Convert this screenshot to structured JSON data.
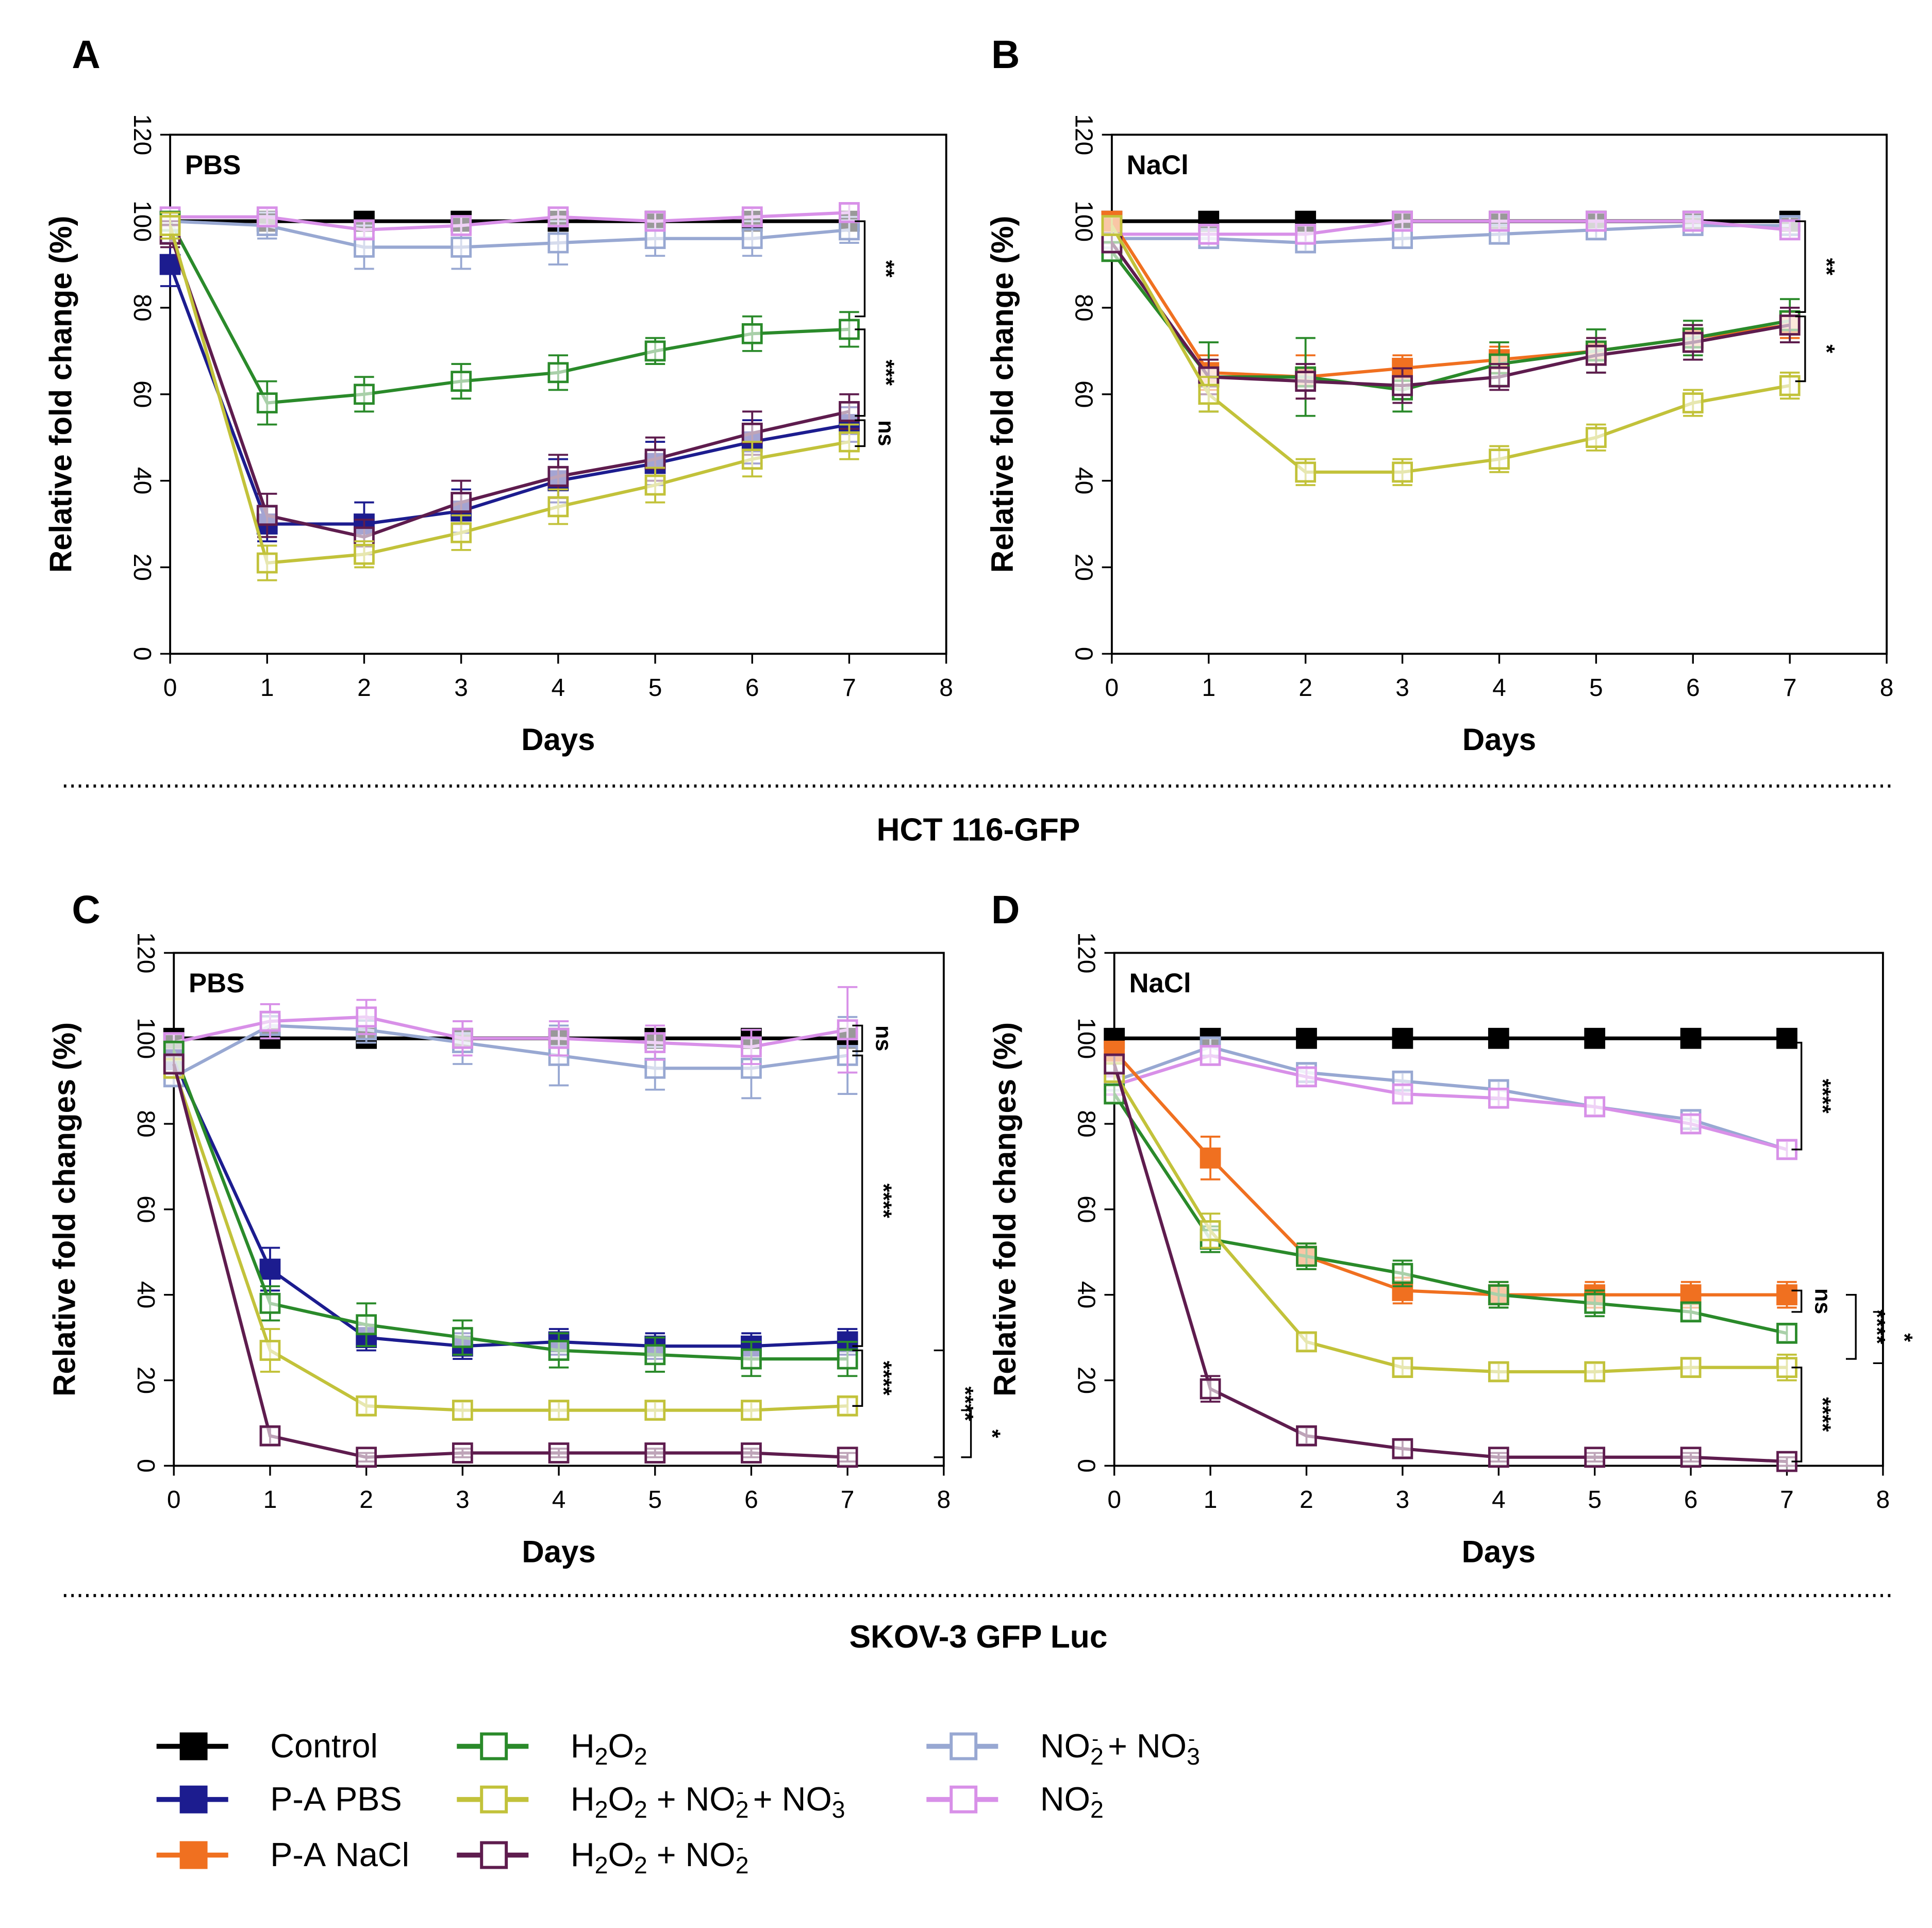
{
  "figure": {
    "cell_lines": [
      "HCT 116-GFP",
      "SKOV-3 GFP Luc"
    ]
  },
  "colors": {
    "Control": "#000000",
    "P-A PBS": "#1c1c8f",
    "P-A NaCl": "#f07020",
    "H2O2": "#2a8a2a",
    "H2O2 + NO2- + NO3-": "#c2c23a",
    "H2O2 + NO2-": "#5e1c4e",
    "NO2- + NO3-": "#98a8d2",
    "NO2-": "#d890e8"
  },
  "legend": {
    "items": [
      {
        "key": "Control",
        "label": "Control",
        "filled": true
      },
      {
        "key": "P-A PBS",
        "label": "P-A PBS",
        "filled": true
      },
      {
        "key": "P-A NaCl",
        "label": "P-A NaCl",
        "filled": true
      },
      {
        "key": "H2O2",
        "label": "H2O2",
        "filled": false
      },
      {
        "key": "H2O2 + NO2- + NO3-",
        "label": "H2O2 + NO2- + NO3-",
        "filled": false
      },
      {
        "key": "H2O2 + NO2-",
        "label": "H2O2 + NO2-",
        "filled": false
      },
      {
        "key": "NO2- + NO3-",
        "label": "NO2- + NO3-",
        "filled": false
      },
      {
        "key": "NO2-",
        "label": "NO2-",
        "filled": false
      }
    ]
  },
  "chart_data": [
    {
      "panel": "A",
      "type": "line",
      "cell_line": "HCT 116-GFP",
      "title": "PBS",
      "xlabel": "Days",
      "ylabel": "Relative fold change (%)",
      "xlim": [
        0,
        8
      ],
      "ylim": [
        0,
        120
      ],
      "xticks": [
        0,
        1,
        2,
        3,
        4,
        5,
        6,
        7,
        8
      ],
      "yticks": [
        0,
        20,
        40,
        60,
        80,
        100,
        120
      ],
      "x": [
        0,
        1,
        2,
        3,
        4,
        5,
        6,
        7
      ],
      "series": [
        {
          "name": "Control",
          "filled": true,
          "values": [
            100,
            100,
            100,
            100,
            100,
            100,
            100,
            100
          ],
          "err": [
            1,
            1,
            1,
            1,
            1,
            1,
            1,
            1
          ]
        },
        {
          "name": "NO2- + NO3-",
          "filled": false,
          "values": [
            100,
            99,
            94,
            94,
            95,
            96,
            96,
            98
          ],
          "err": [
            2,
            3,
            5,
            5,
            5,
            4,
            4,
            3
          ]
        },
        {
          "name": "NO2-",
          "filled": false,
          "values": [
            101,
            101,
            98,
            99,
            101,
            100,
            101,
            102
          ],
          "err": [
            2,
            2,
            2,
            2,
            2,
            2,
            2,
            2
          ]
        },
        {
          "name": "H2O2",
          "filled": false,
          "values": [
            100,
            58,
            60,
            63,
            65,
            70,
            74,
            75
          ],
          "err": [
            2,
            5,
            4,
            4,
            4,
            3,
            4,
            4
          ]
        },
        {
          "name": "P-A PBS",
          "filled": true,
          "values": [
            90,
            30,
            30,
            33,
            40,
            44,
            49,
            53
          ],
          "err": [
            5,
            4,
            5,
            5,
            5,
            5,
            5,
            4
          ]
        },
        {
          "name": "H2O2 + NO2-",
          "filled": false,
          "values": [
            97,
            32,
            27,
            35,
            41,
            45,
            51,
            56
          ],
          "err": [
            3,
            5,
            4,
            5,
            5,
            5,
            5,
            4
          ]
        },
        {
          "name": "H2O2 + NO2- + NO3-",
          "filled": false,
          "values": [
            99,
            21,
            23,
            28,
            34,
            39,
            45,
            49
          ],
          "err": [
            3,
            4,
            3,
            4,
            4,
            4,
            4,
            4
          ]
        }
      ],
      "annotations": [
        {
          "label": "**",
          "y_top": 100,
          "y_bottom": 78
        },
        {
          "label": "***",
          "y_top": 75,
          "y_bottom": 55
        },
        {
          "label": "ns",
          "y_top": 54,
          "y_bottom": 48
        }
      ]
    },
    {
      "panel": "B",
      "type": "line",
      "cell_line": "HCT 116-GFP",
      "title": "NaCl",
      "xlabel": "Days",
      "ylabel": "Relative fold change (%)",
      "xlim": [
        0,
        8
      ],
      "ylim": [
        0,
        120
      ],
      "xticks": [
        0,
        1,
        2,
        3,
        4,
        5,
        6,
        7,
        8
      ],
      "yticks": [
        0,
        20,
        40,
        60,
        80,
        100,
        120
      ],
      "x": [
        0,
        1,
        2,
        3,
        4,
        5,
        6,
        7
      ],
      "series": [
        {
          "name": "Control",
          "filled": true,
          "values": [
            100,
            100,
            100,
            100,
            100,
            100,
            100,
            100
          ],
          "err": [
            1,
            1,
            1,
            1,
            1,
            1,
            1,
            1
          ]
        },
        {
          "name": "NO2- + NO3-",
          "filled": false,
          "values": [
            96,
            96,
            95,
            96,
            97,
            98,
            99,
            99
          ],
          "err": [
            2,
            2,
            2,
            2,
            2,
            2,
            2,
            2
          ]
        },
        {
          "name": "NO2-",
          "filled": false,
          "values": [
            97,
            97,
            97,
            100,
            100,
            100,
            100,
            98
          ],
          "err": [
            2,
            2,
            2,
            2,
            2,
            2,
            2,
            2
          ]
        },
        {
          "name": "P-A NaCl",
          "filled": true,
          "values": [
            100,
            65,
            64,
            66,
            68,
            70,
            73,
            76
          ],
          "err": [
            2,
            4,
            5,
            3,
            3,
            3,
            3,
            3
          ]
        },
        {
          "name": "H2O2",
          "filled": false,
          "values": [
            93,
            64,
            64,
            61,
            67,
            70,
            73,
            77
          ],
          "err": [
            2,
            8,
            9,
            5,
            5,
            5,
            4,
            5
          ]
        },
        {
          "name": "H2O2 + NO2-",
          "filled": false,
          "values": [
            95,
            64,
            63,
            62,
            64,
            69,
            72,
            76
          ],
          "err": [
            2,
            4,
            4,
            4,
            3,
            4,
            4,
            4
          ]
        },
        {
          "name": "H2O2 + NO2- + NO3-",
          "filled": false,
          "values": [
            99,
            60,
            42,
            42,
            45,
            50,
            58,
            62
          ],
          "err": [
            2,
            4,
            3,
            3,
            3,
            3,
            3,
            3
          ]
        }
      ],
      "annotations": [
        {
          "label": "**",
          "y_top": 100,
          "y_bottom": 79
        },
        {
          "label": "*",
          "y_top": 78,
          "y_bottom": 63
        }
      ]
    },
    {
      "panel": "C",
      "type": "line",
      "cell_line": "SKOV-3 GFP Luc",
      "title": "PBS",
      "xlabel": "Days",
      "ylabel": "Relative fold changes (%)",
      "xlim": [
        0,
        8
      ],
      "ylim": [
        0,
        120
      ],
      "xticks": [
        0,
        1,
        2,
        3,
        4,
        5,
        6,
        7,
        8
      ],
      "yticks": [
        0,
        20,
        40,
        60,
        80,
        100,
        120
      ],
      "x": [
        0,
        1,
        2,
        3,
        4,
        5,
        6,
        7
      ],
      "series": [
        {
          "name": "Control",
          "filled": true,
          "values": [
            100,
            100,
            100,
            100,
            100,
            100,
            100,
            100
          ],
          "err": [
            1,
            1,
            1,
            1,
            1,
            1,
            1,
            1
          ]
        },
        {
          "name": "NO2- + NO3-",
          "filled": false,
          "values": [
            91,
            103,
            102,
            99,
            96,
            93,
            93,
            96
          ],
          "err": [
            2,
            3,
            3,
            5,
            7,
            5,
            7,
            9
          ]
        },
        {
          "name": "NO2-",
          "filled": false,
          "values": [
            99,
            104,
            105,
            100,
            100,
            99,
            98,
            102
          ],
          "err": [
            2,
            4,
            4,
            4,
            4,
            4,
            4,
            10
          ]
        },
        {
          "name": "P-A PBS",
          "filled": true,
          "values": [
            95,
            46,
            30,
            28,
            29,
            28,
            28,
            29
          ],
          "err": [
            2,
            5,
            3,
            3,
            3,
            3,
            3,
            3
          ]
        },
        {
          "name": "H2O2",
          "filled": false,
          "values": [
            97,
            38,
            33,
            30,
            27,
            26,
            25,
            25
          ],
          "err": [
            2,
            4,
            5,
            4,
            4,
            4,
            4,
            4
          ]
        },
        {
          "name": "H2O2 + NO2- + NO3-",
          "filled": false,
          "values": [
            93,
            27,
            14,
            13,
            13,
            13,
            13,
            14
          ],
          "err": [
            2,
            5,
            2,
            2,
            2,
            2,
            2,
            2
          ]
        },
        {
          "name": "H2O2 + NO2-",
          "filled": false,
          "values": [
            94,
            7,
            2,
            3,
            3,
            3,
            3,
            2
          ],
          "err": [
            2,
            2,
            1,
            1,
            1,
            1,
            1,
            1
          ]
        }
      ],
      "annotations": [
        {
          "label": "ns",
          "y_top": 103,
          "y_bottom": 97
        },
        {
          "label": "****",
          "y_top": 96,
          "y_bottom": 28
        },
        {
          "label": "****",
          "y_top": 27,
          "y_bottom": 14
        },
        {
          "label": "****",
          "y_top": 27,
          "y_bottom": 2
        },
        {
          "label": "*",
          "y_top": 13,
          "y_bottom": 2
        }
      ]
    },
    {
      "panel": "D",
      "type": "line",
      "cell_line": "SKOV-3 GFP Luc",
      "title": "NaCl",
      "xlabel": "Days",
      "ylabel": "Relative fold changes (%)",
      "xlim": [
        0,
        8
      ],
      "ylim": [
        0,
        120
      ],
      "xticks": [
        0,
        1,
        2,
        3,
        4,
        5,
        6,
        7,
        8
      ],
      "yticks": [
        0,
        20,
        40,
        60,
        80,
        100,
        120
      ],
      "x": [
        0,
        1,
        2,
        3,
        4,
        5,
        6,
        7
      ],
      "series": [
        {
          "name": "Control",
          "filled": true,
          "values": [
            100,
            100,
            100,
            100,
            100,
            100,
            100,
            100
          ],
          "err": [
            1,
            1,
            1,
            1,
            1,
            1,
            1,
            1
          ]
        },
        {
          "name": "NO2- + NO3-",
          "filled": false,
          "values": [
            90,
            98,
            92,
            90,
            88,
            84,
            81,
            74
          ],
          "err": [
            2,
            2,
            2,
            2,
            2,
            2,
            2,
            2
          ]
        },
        {
          "name": "NO2-",
          "filled": false,
          "values": [
            89,
            96,
            91,
            87,
            86,
            84,
            80,
            74
          ],
          "err": [
            2,
            2,
            2,
            2,
            2,
            2,
            2,
            2
          ]
        },
        {
          "name": "P-A NaCl",
          "filled": true,
          "values": [
            97,
            72,
            49,
            41,
            40,
            40,
            40,
            40
          ],
          "err": [
            2,
            5,
            3,
            3,
            3,
            3,
            3,
            3
          ]
        },
        {
          "name": "H2O2",
          "filled": false,
          "values": [
            87,
            53,
            49,
            45,
            40,
            38,
            36,
            31
          ],
          "err": [
            2,
            3,
            3,
            3,
            3,
            3,
            2,
            2
          ]
        },
        {
          "name": "H2O2 + NO2- + NO3-",
          "filled": false,
          "values": [
            92,
            55,
            29,
            23,
            22,
            22,
            23,
            23
          ],
          "err": [
            2,
            4,
            2,
            2,
            2,
            2,
            2,
            3
          ]
        },
        {
          "name": "H2O2 + NO2-",
          "filled": false,
          "values": [
            94,
            18,
            7,
            4,
            2,
            2,
            2,
            1
          ],
          "err": [
            2,
            3,
            2,
            2,
            1,
            1,
            1,
            1
          ]
        }
      ],
      "annotations": [
        {
          "label": "****",
          "y_top": 99,
          "y_bottom": 74
        },
        {
          "label": "ns",
          "y_top": 41,
          "y_bottom": 36
        },
        {
          "label": "****",
          "y_top": 40,
          "y_bottom": 25
        },
        {
          "label": "*",
          "y_top": 36,
          "y_bottom": 24
        },
        {
          "label": "****",
          "y_top": 23,
          "y_bottom": 1
        }
      ]
    }
  ]
}
